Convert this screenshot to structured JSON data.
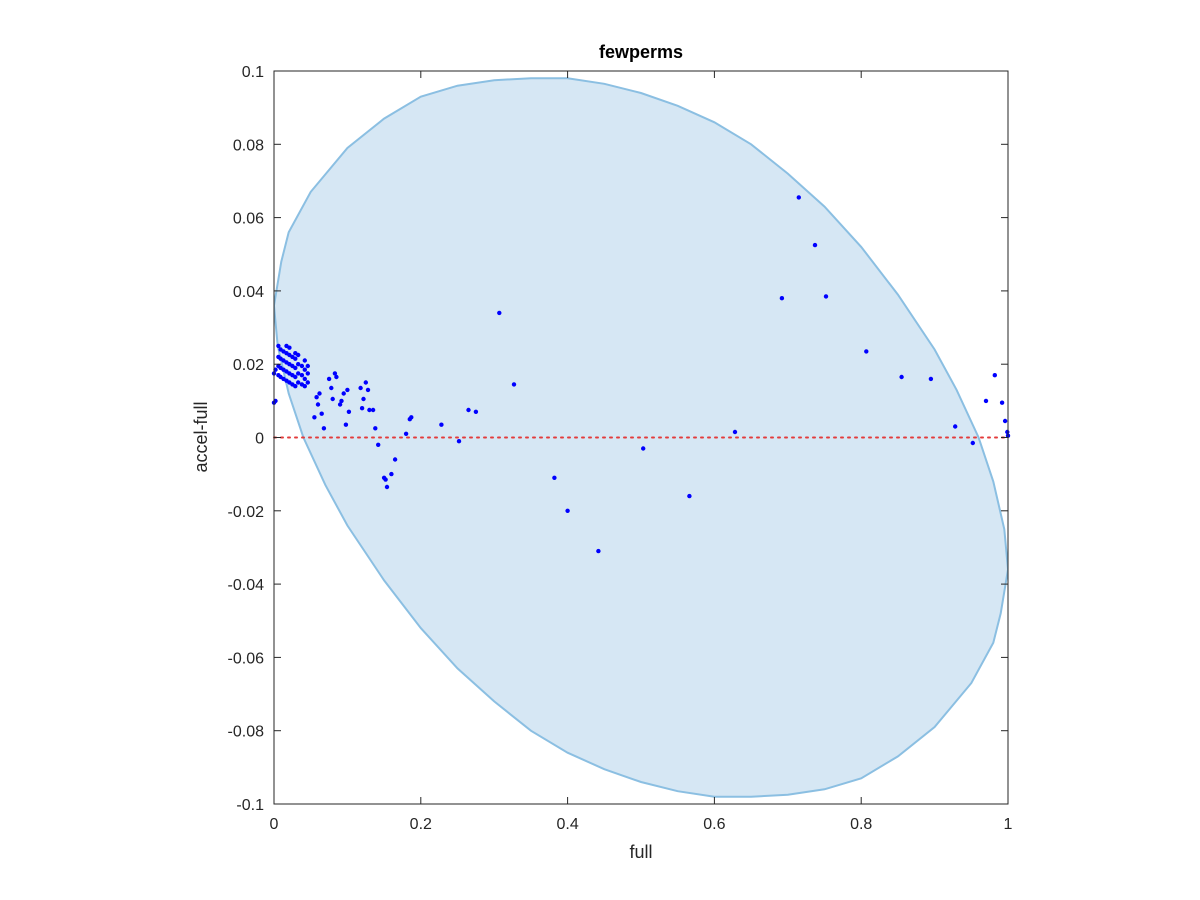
{
  "chart_data": {
    "type": "scatter",
    "title": "fewperms",
    "xlabel": "full",
    "ylabel": "accel-full",
    "xlim": [
      0,
      1
    ],
    "ylim": [
      -0.1,
      0.1
    ],
    "xticks": [
      "0",
      "0.2",
      "0.4",
      "0.6",
      "0.8",
      "1"
    ],
    "yticks": [
      "-0.1",
      "-0.08",
      "-0.06",
      "-0.04",
      "-0.02",
      "0",
      "0.02",
      "0.04",
      "0.06",
      "0.08",
      "0.1"
    ],
    "grid": false,
    "legend": "none",
    "reference_line": {
      "y": 0,
      "style": "dotted",
      "color": "#e33c3c"
    },
    "region": {
      "shape": "ellipse",
      "center": [
        0.5,
        0
      ],
      "fill": "#d6e7f4",
      "edge": "#8bbfe2",
      "outline": [
        [
          0.0,
          0.036
        ],
        [
          0.01,
          0.048
        ],
        [
          0.02,
          0.056
        ],
        [
          0.05,
          0.067
        ],
        [
          0.1,
          0.079
        ],
        [
          0.15,
          0.087
        ],
        [
          0.2,
          0.093
        ],
        [
          0.25,
          0.096
        ],
        [
          0.3,
          0.0975
        ],
        [
          0.35,
          0.098
        ],
        [
          0.4,
          0.098
        ],
        [
          0.45,
          0.0965
        ],
        [
          0.5,
          0.094
        ],
        [
          0.55,
          0.0905
        ],
        [
          0.6,
          0.086
        ],
        [
          0.65,
          0.08
        ],
        [
          0.7,
          0.072
        ],
        [
          0.75,
          0.063
        ],
        [
          0.8,
          0.052
        ],
        [
          0.85,
          0.039
        ],
        [
          0.9,
          0.024
        ],
        [
          0.93,
          0.013
        ],
        [
          0.96,
          0.0
        ],
        [
          0.98,
          -0.012
        ],
        [
          0.995,
          -0.025
        ],
        [
          1.0,
          -0.036
        ],
        [
          0.99,
          -0.048
        ],
        [
          0.98,
          -0.056
        ],
        [
          0.95,
          -0.067
        ],
        [
          0.9,
          -0.079
        ],
        [
          0.85,
          -0.087
        ],
        [
          0.8,
          -0.093
        ],
        [
          0.75,
          -0.096
        ],
        [
          0.7,
          -0.0975
        ],
        [
          0.65,
          -0.098
        ],
        [
          0.6,
          -0.098
        ],
        [
          0.55,
          -0.0965
        ],
        [
          0.5,
          -0.094
        ],
        [
          0.45,
          -0.0905
        ],
        [
          0.4,
          -0.086
        ],
        [
          0.35,
          -0.08
        ],
        [
          0.3,
          -0.072
        ],
        [
          0.25,
          -0.063
        ],
        [
          0.2,
          -0.052
        ],
        [
          0.15,
          -0.039
        ],
        [
          0.1,
          -0.024
        ],
        [
          0.07,
          -0.013
        ],
        [
          0.04,
          0.0
        ],
        [
          0.02,
          0.012
        ],
        [
          0.005,
          0.025
        ],
        [
          0.0,
          0.036
        ]
      ]
    },
    "series": [
      {
        "color": "#0000ff",
        "points": [
          [
            0.0,
            0.0095
          ],
          [
            0.0,
            0.0175
          ],
          [
            0.002,
            0.01
          ],
          [
            0.002,
            0.0185
          ],
          [
            0.006,
            0.017
          ],
          [
            0.006,
            0.0195
          ],
          [
            0.006,
            0.022
          ],
          [
            0.006,
            0.025
          ],
          [
            0.009,
            0.0165
          ],
          [
            0.009,
            0.019
          ],
          [
            0.009,
            0.0215
          ],
          [
            0.009,
            0.024
          ],
          [
            0.013,
            0.016
          ],
          [
            0.013,
            0.0185
          ],
          [
            0.013,
            0.021
          ],
          [
            0.013,
            0.0235
          ],
          [
            0.017,
            0.0155
          ],
          [
            0.017,
            0.018
          ],
          [
            0.017,
            0.0205
          ],
          [
            0.017,
            0.023
          ],
          [
            0.017,
            0.025
          ],
          [
            0.021,
            0.015
          ],
          [
            0.021,
            0.0175
          ],
          [
            0.021,
            0.02
          ],
          [
            0.021,
            0.0225
          ],
          [
            0.021,
            0.0245
          ],
          [
            0.025,
            0.0145
          ],
          [
            0.025,
            0.017
          ],
          [
            0.025,
            0.0195
          ],
          [
            0.025,
            0.022
          ],
          [
            0.029,
            0.014
          ],
          [
            0.029,
            0.0165
          ],
          [
            0.029,
            0.019
          ],
          [
            0.029,
            0.0215
          ],
          [
            0.029,
            0.023
          ],
          [
            0.033,
            0.015
          ],
          [
            0.033,
            0.0175
          ],
          [
            0.033,
            0.02
          ],
          [
            0.033,
            0.0225
          ],
          [
            0.038,
            0.0145
          ],
          [
            0.038,
            0.017
          ],
          [
            0.038,
            0.0195
          ],
          [
            0.042,
            0.014
          ],
          [
            0.042,
            0.016
          ],
          [
            0.042,
            0.0185
          ],
          [
            0.042,
            0.021
          ],
          [
            0.046,
            0.015
          ],
          [
            0.046,
            0.0175
          ],
          [
            0.046,
            0.0195
          ],
          [
            0.055,
            0.0055
          ],
          [
            0.058,
            0.011
          ],
          [
            0.06,
            0.009
          ],
          [
            0.062,
            0.012
          ],
          [
            0.065,
            0.0065
          ],
          [
            0.068,
            0.0025
          ],
          [
            0.075,
            0.016
          ],
          [
            0.078,
            0.0135
          ],
          [
            0.08,
            0.0105
          ],
          [
            0.083,
            0.0175
          ],
          [
            0.085,
            0.0165
          ],
          [
            0.09,
            0.009
          ],
          [
            0.092,
            0.01
          ],
          [
            0.095,
            0.012
          ],
          [
            0.098,
            0.0035
          ],
          [
            0.1,
            0.013
          ],
          [
            0.102,
            0.007
          ],
          [
            0.118,
            0.0135
          ],
          [
            0.12,
            0.008
          ],
          [
            0.122,
            0.0105
          ],
          [
            0.125,
            0.015
          ],
          [
            0.128,
            0.013
          ],
          [
            0.13,
            0.0075
          ],
          [
            0.135,
            0.0075
          ],
          [
            0.138,
            0.0025
          ],
          [
            0.142,
            -0.002
          ],
          [
            0.15,
            -0.011
          ],
          [
            0.152,
            -0.0115
          ],
          [
            0.154,
            -0.0135
          ],
          [
            0.16,
            -0.01
          ],
          [
            0.165,
            -0.006
          ],
          [
            0.18,
            0.001
          ],
          [
            0.185,
            0.005
          ],
          [
            0.187,
            0.0055
          ],
          [
            0.228,
            0.0035
          ],
          [
            0.252,
            -0.001
          ],
          [
            0.265,
            0.0075
          ],
          [
            0.275,
            0.007
          ],
          [
            0.307,
            0.034
          ],
          [
            0.327,
            0.0145
          ],
          [
            0.382,
            -0.011
          ],
          [
            0.4,
            -0.02
          ],
          [
            0.442,
            -0.031
          ],
          [
            0.503,
            -0.003
          ],
          [
            0.566,
            -0.016
          ],
          [
            0.628,
            0.0015
          ],
          [
            0.692,
            0.038
          ],
          [
            0.715,
            0.0655
          ],
          [
            0.737,
            0.0525
          ],
          [
            0.752,
            0.0385
          ],
          [
            0.807,
            0.0235
          ],
          [
            0.855,
            0.0165
          ],
          [
            0.895,
            0.016
          ],
          [
            0.928,
            0.003
          ],
          [
            0.952,
            -0.0015
          ],
          [
            0.97,
            0.01
          ],
          [
            0.982,
            0.017
          ],
          [
            0.992,
            0.0095
          ],
          [
            0.996,
            0.0045
          ],
          [
            0.999,
            0.0015
          ],
          [
            1.0,
            0.0005
          ]
        ]
      }
    ]
  }
}
